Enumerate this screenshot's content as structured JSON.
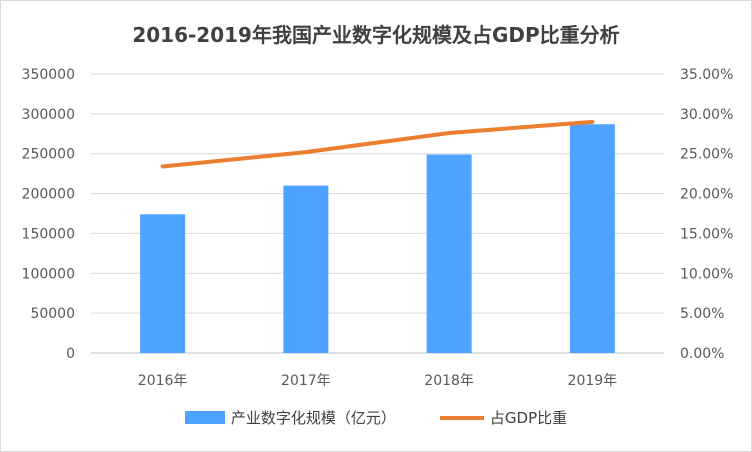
{
  "chart_data": {
    "type": "bar",
    "title": "2016-2019年我国产业数字化规模及占GDP比重分析",
    "categories": [
      "2016年",
      "2017年",
      "2018年",
      "2019年"
    ],
    "series": [
      {
        "name": "产业数字化规模（亿元）",
        "type": "bar",
        "axis": "left",
        "values": [
          174000,
          210000,
          249000,
          287000
        ],
        "color": "#4da3ff"
      },
      {
        "name": "占GDP比重",
        "type": "line",
        "axis": "right",
        "values": [
          23.4,
          25.2,
          27.6,
          29.0
        ],
        "color": "#ed7d31"
      }
    ],
    "y_left": {
      "min": 0,
      "max": 350000,
      "ticks": [
        "0",
        "50000",
        "100000",
        "150000",
        "200000",
        "250000",
        "300000",
        "350000"
      ]
    },
    "y_right": {
      "min": 0,
      "max": 35,
      "ticks": [
        "0.00%",
        "5.00%",
        "10.00%",
        "15.00%",
        "20.00%",
        "25.00%",
        "30.00%",
        "35.00%"
      ]
    },
    "grid": true,
    "legend": "bottom"
  }
}
